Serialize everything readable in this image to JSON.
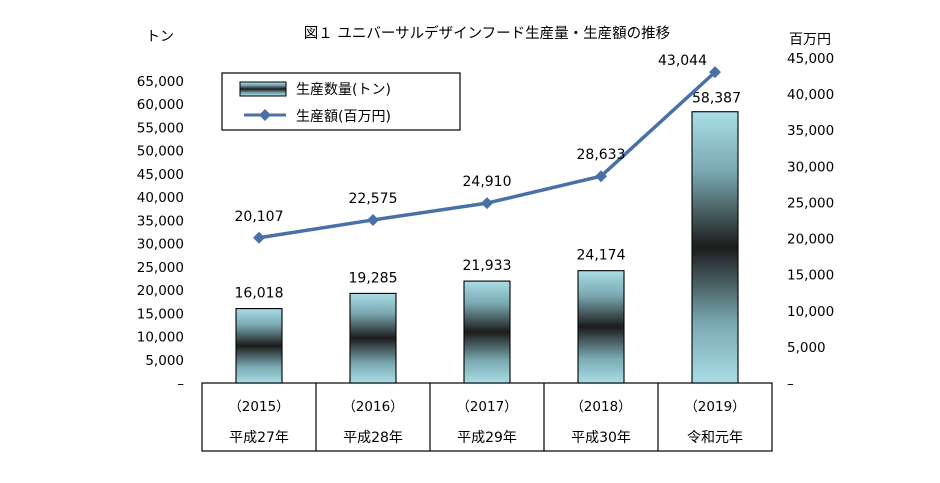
{
  "chart_data": {
    "type": "bar",
    "title": "図１ ユニバーサルデザインフード生産量・生産額の推移",
    "y_left_label": "トン",
    "y_right_label": "百万円",
    "categories": [
      {
        "year": "（2015）",
        "era": "平成27年"
      },
      {
        "year": "（2016）",
        "era": "平成28年"
      },
      {
        "year": "（2017）",
        "era": "平成29年"
      },
      {
        "year": "（2018）",
        "era": "平成30年"
      },
      {
        "year": "（2019）",
        "era": "令和元年"
      }
    ],
    "series": [
      {
        "name": "生産数量(トン)",
        "type": "bar",
        "axis": "left",
        "values": [
          16018,
          19285,
          21933,
          24174,
          58387
        ],
        "labels": [
          "16,018",
          "19,285",
          "21,933",
          "24,174",
          "58,387"
        ]
      },
      {
        "name": "生産額(百万円)",
        "type": "line",
        "axis": "right",
        "values": [
          20107,
          22575,
          24910,
          28633,
          43044
        ],
        "labels": [
          "20,107",
          "22,575",
          "24,910",
          "28,633",
          "43,044"
        ]
      }
    ],
    "y_left": {
      "min": 0,
      "max": 65000,
      "step": 5000,
      "ticks": [
        "–",
        "5,000",
        "10,000",
        "15,000",
        "20,000",
        "25,000",
        "30,000",
        "35,000",
        "40,000",
        "45,000",
        "50,000",
        "55,000",
        "60,000",
        "65,000"
      ]
    },
    "y_right": {
      "min": 0,
      "max": 45000,
      "step": 5000,
      "ticks": [
        "–",
        "5,000",
        "10,000",
        "15,000",
        "20,000",
        "25,000",
        "30,000",
        "35,000",
        "40,000",
        "45,000"
      ]
    },
    "legend_position": "top-left",
    "colors": {
      "line": "#4a70a8",
      "bar_outer": "#a9dde6",
      "bar_inner": "#1c1c1c",
      "border": "#000000"
    }
  }
}
